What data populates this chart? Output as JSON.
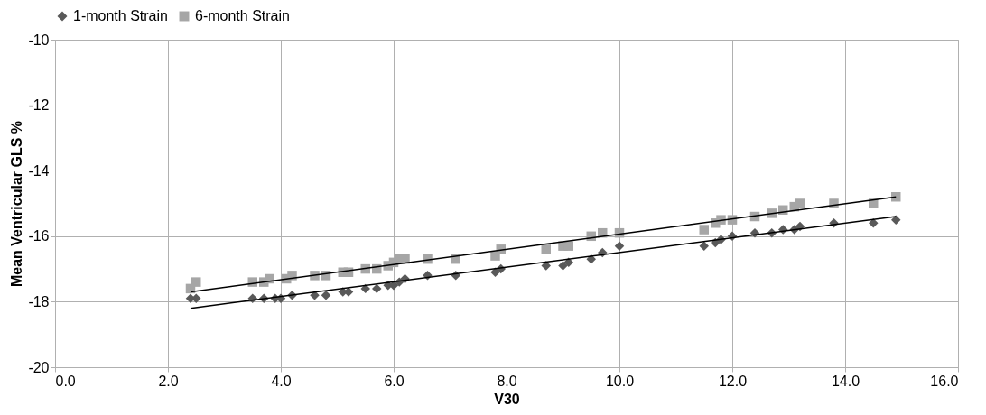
{
  "chart_data": {
    "type": "scatter",
    "xlabel": "V30",
    "ylabel": "Mean Ventricular GLS %",
    "xlim": [
      0,
      16
    ],
    "xticks": [
      {
        "value": 0,
        "label": "0.0"
      },
      {
        "value": 2,
        "label": "2.0"
      },
      {
        "value": 4,
        "label": "4.0"
      },
      {
        "value": 6,
        "label": "6.0"
      },
      {
        "value": 8,
        "label": "8.0"
      },
      {
        "value": 10,
        "label": "10.0"
      },
      {
        "value": 12,
        "label": "12.0"
      },
      {
        "value": 14,
        "label": "14.0"
      },
      {
        "value": 16,
        "label": "16.0"
      }
    ],
    "ylim": [
      -20,
      -10
    ],
    "yticks": [
      -20,
      -18,
      -16,
      -14,
      -12,
      -10
    ],
    "grid": true,
    "legend": "top",
    "series": [
      {
        "name": "1-month Strain",
        "color": "#595959",
        "marker": "diamond",
        "x": [
          2.4,
          2.5,
          3.5,
          3.7,
          3.9,
          4.0,
          4.2,
          4.6,
          4.8,
          5.1,
          5.2,
          5.5,
          5.7,
          5.9,
          6.0,
          6.1,
          6.2,
          6.6,
          7.1,
          7.8,
          7.9,
          8.7,
          9.0,
          9.1,
          9.5,
          9.7,
          10.0,
          11.5,
          11.7,
          11.8,
          12.0,
          12.4,
          12.7,
          12.9,
          13.1,
          13.2,
          13.8,
          14.5,
          14.9
        ],
        "values": [
          -17.9,
          -17.9,
          -17.9,
          -17.9,
          -17.9,
          -17.9,
          -17.8,
          -17.8,
          -17.8,
          -17.7,
          -17.7,
          -17.6,
          -17.6,
          -17.5,
          -17.5,
          -17.4,
          -17.3,
          -17.2,
          -17.2,
          -17.1,
          -17.0,
          -16.9,
          -16.9,
          -16.8,
          -16.7,
          -16.5,
          -16.3,
          -16.3,
          -16.2,
          -16.1,
          -16.0,
          -15.9,
          -15.9,
          -15.8,
          -15.8,
          -15.7,
          -15.6,
          -15.6,
          -15.5
        ]
      },
      {
        "name": "6-month Strain",
        "color": "#a6a6a6",
        "marker": "square",
        "x": [
          2.4,
          2.5,
          3.5,
          3.7,
          3.8,
          4.1,
          4.2,
          4.6,
          4.8,
          5.1,
          5.2,
          5.5,
          5.7,
          5.9,
          6.0,
          6.1,
          6.2,
          6.6,
          7.1,
          7.8,
          7.9,
          8.7,
          9.0,
          9.1,
          9.5,
          9.7,
          10.0,
          11.5,
          11.7,
          11.8,
          12.0,
          12.4,
          12.7,
          12.9,
          13.1,
          13.2,
          13.8,
          14.5,
          14.9
        ],
        "values": [
          -17.6,
          -17.4,
          -17.4,
          -17.4,
          -17.3,
          -17.3,
          -17.2,
          -17.2,
          -17.2,
          -17.1,
          -17.1,
          -17.0,
          -17.0,
          -16.9,
          -16.8,
          -16.7,
          -16.7,
          -16.7,
          -16.7,
          -16.6,
          -16.4,
          -16.4,
          -16.3,
          -16.3,
          -16.0,
          -15.9,
          -15.9,
          -15.8,
          -15.6,
          -15.5,
          -15.5,
          -15.4,
          -15.3,
          -15.2,
          -15.1,
          -15.0,
          -15.0,
          -15.0,
          -14.8
        ]
      },
      {
        "type": "line",
        "color": "#000000",
        "line_style": "solid",
        "x": [
          2.4,
          14.9
        ],
        "values": [
          -18.2,
          -15.4
        ]
      },
      {
        "type": "line",
        "color": "#000000",
        "line_style": "solid",
        "x": [
          2.4,
          14.9
        ],
        "values": [
          -17.7,
          -14.8
        ]
      }
    ]
  }
}
